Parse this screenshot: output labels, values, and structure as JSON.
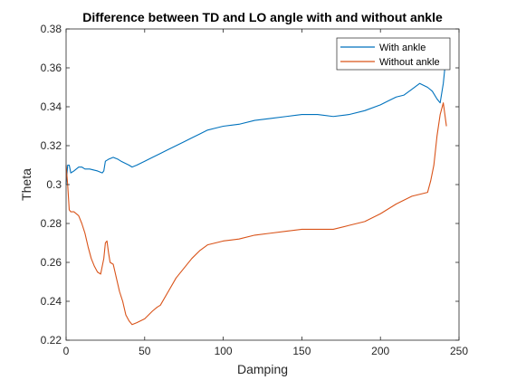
{
  "chart_data": {
    "type": "line",
    "title": "Difference between TD and LO angle with and without ankle",
    "xlabel": "Damping",
    "ylabel": "Theta",
    "xlim": [
      0,
      250
    ],
    "ylim": [
      0.22,
      0.38
    ],
    "xticks": [
      0,
      50,
      100,
      150,
      200,
      250
    ],
    "yticks": [
      0.22,
      0.24,
      0.26,
      0.28,
      0.3,
      0.32,
      0.34,
      0.36,
      0.38
    ],
    "xtick_labels": [
      "0",
      "50",
      "100",
      "150",
      "200",
      "250"
    ],
    "ytick_labels": [
      "0.22",
      "0.24",
      "0.26",
      "0.28",
      "0.3",
      "0.32",
      "0.34",
      "0.36",
      "0.38"
    ],
    "grid": false,
    "legend_position": "top-right",
    "series": [
      {
        "name": "With ankle",
        "color": "#0072BD",
        "x": [
          0,
          1,
          2,
          3,
          5,
          8,
          10,
          12,
          15,
          20,
          23,
          24,
          25,
          27,
          30,
          33,
          35,
          40,
          42,
          45,
          50,
          55,
          60,
          65,
          70,
          75,
          80,
          85,
          90,
          95,
          100,
          110,
          120,
          130,
          140,
          150,
          160,
          170,
          180,
          190,
          200,
          205,
          210,
          215,
          220,
          225,
          230,
          233,
          236,
          238,
          240,
          241
        ],
        "y": [
          0.3,
          0.31,
          0.31,
          0.306,
          0.307,
          0.309,
          0.309,
          0.308,
          0.308,
          0.307,
          0.306,
          0.307,
          0.312,
          0.313,
          0.314,
          0.313,
          0.312,
          0.31,
          0.309,
          0.31,
          0.312,
          0.314,
          0.316,
          0.318,
          0.32,
          0.322,
          0.324,
          0.326,
          0.328,
          0.329,
          0.33,
          0.331,
          0.333,
          0.334,
          0.335,
          0.336,
          0.336,
          0.335,
          0.336,
          0.338,
          0.341,
          0.343,
          0.345,
          0.346,
          0.349,
          0.352,
          0.35,
          0.348,
          0.344,
          0.342,
          0.352,
          0.36
        ]
      },
      {
        "name": "Without ankle",
        "color": "#D95319",
        "x": [
          0,
          1,
          2,
          3,
          5,
          8,
          10,
          12,
          14,
          16,
          18,
          20,
          22,
          24,
          25,
          26,
          27,
          28,
          30,
          32,
          34,
          36,
          38,
          40,
          42,
          45,
          50,
          55,
          58,
          60,
          65,
          70,
          75,
          80,
          85,
          90,
          95,
          100,
          110,
          120,
          130,
          140,
          150,
          160,
          170,
          180,
          190,
          200,
          210,
          220,
          225,
          230,
          232,
          234,
          236,
          238,
          240,
          242
        ],
        "y": [
          0.31,
          0.3,
          0.287,
          0.286,
          0.286,
          0.284,
          0.28,
          0.275,
          0.268,
          0.262,
          0.258,
          0.255,
          0.254,
          0.262,
          0.27,
          0.271,
          0.265,
          0.26,
          0.259,
          0.252,
          0.245,
          0.24,
          0.233,
          0.23,
          0.228,
          0.229,
          0.231,
          0.235,
          0.237,
          0.238,
          0.245,
          0.252,
          0.257,
          0.262,
          0.266,
          0.269,
          0.27,
          0.271,
          0.272,
          0.274,
          0.275,
          0.276,
          0.277,
          0.277,
          0.277,
          0.279,
          0.281,
          0.285,
          0.29,
          0.294,
          0.295,
          0.296,
          0.302,
          0.31,
          0.325,
          0.336,
          0.342,
          0.33
        ]
      }
    ]
  }
}
